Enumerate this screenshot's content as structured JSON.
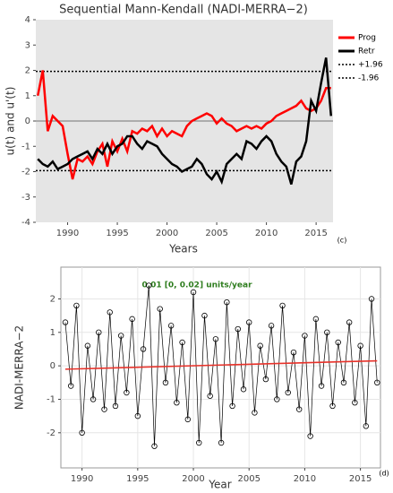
{
  "chart_data": [
    {
      "type": "line",
      "title": "Sequential Mann-Kendall (NADI-MERRA−2)",
      "xlabel": "Years",
      "ylabel": "u(t) and u'(t)",
      "tag": "(c)",
      "plot_background": "#e5e5e5",
      "grid": false,
      "legend": "right",
      "xlim": [
        1986.8,
        2016.7
      ],
      "ylim": [
        -4,
        4
      ],
      "xticks": [
        1990,
        1995,
        2000,
        2005,
        2010,
        2015
      ],
      "yticks": [
        -4,
        -3,
        -2,
        -1,
        0,
        1,
        2,
        3,
        4
      ],
      "x": [
        1987,
        1987.5,
        1988,
        1988.5,
        1989,
        1989.5,
        1990,
        1990.5,
        1991,
        1991.5,
        1992,
        1992.5,
        1993,
        1993.5,
        1994,
        1994.5,
        1995,
        1995.5,
        1996,
        1996.5,
        1997,
        1997.5,
        1998,
        1998.5,
        1999,
        1999.5,
        2000,
        2000.5,
        2001,
        2001.5,
        2002,
        2002.5,
        2003,
        2003.5,
        2004,
        2004.5,
        2005,
        2005.5,
        2006,
        2006.5,
        2007,
        2007.5,
        2008,
        2008.5,
        2009,
        2009.5,
        2010,
        2010.5,
        2011,
        2011.5,
        2012,
        2012.5,
        2013,
        2013.5,
        2014,
        2014.5,
        2015,
        2015.5,
        2016,
        2016.5
      ],
      "series": [
        {
          "name": "Prog",
          "color": "#ff0000",
          "values": [
            1.0,
            2.0,
            -0.4,
            0.2,
            0.0,
            -0.2,
            -1.3,
            -2.3,
            -1.5,
            -1.6,
            -1.4,
            -1.7,
            -1.2,
            -0.9,
            -1.8,
            -0.8,
            -1.2,
            -0.7,
            -1.2,
            -0.4,
            -0.5,
            -0.3,
            -0.4,
            -0.2,
            -0.6,
            -0.3,
            -0.6,
            -0.4,
            -0.5,
            -0.6,
            -0.2,
            0.0,
            0.1,
            0.2,
            0.3,
            0.2,
            -0.1,
            0.1,
            -0.1,
            -0.2,
            -0.4,
            -0.3,
            -0.2,
            -0.3,
            -0.2,
            -0.3,
            -0.1,
            0.0,
            0.2,
            0.3,
            0.4,
            0.5,
            0.6,
            0.8,
            0.5,
            0.4,
            0.5,
            0.8,
            1.3,
            1.3
          ]
        },
        {
          "name": "Retr",
          "color": "#000000",
          "values": [
            -1.5,
            -1.7,
            -1.8,
            -1.6,
            -1.9,
            -1.8,
            -1.7,
            -1.5,
            -1.4,
            -1.3,
            -1.2,
            -1.5,
            -1.1,
            -1.3,
            -0.9,
            -1.3,
            -1.0,
            -0.9,
            -0.6,
            -0.6,
            -0.9,
            -1.1,
            -0.8,
            -0.9,
            -1.0,
            -1.3,
            -1.5,
            -1.7,
            -1.8,
            -2.0,
            -1.9,
            -1.8,
            -1.5,
            -1.7,
            -2.1,
            -2.3,
            -2.0,
            -2.4,
            -1.7,
            -1.5,
            -1.3,
            -1.5,
            -0.8,
            -0.9,
            -1.1,
            -0.8,
            -0.6,
            -0.8,
            -1.3,
            -1.6,
            -1.8,
            -2.5,
            -1.6,
            -1.4,
            -0.8,
            0.8,
            0.4,
            1.5,
            2.5,
            0.2
          ]
        }
      ],
      "hlines": [
        {
          "value": 1.96,
          "name": "+1.96",
          "style": "dotted"
        },
        {
          "value": -1.96,
          "name": "-1.96",
          "style": "dotted"
        },
        {
          "value": 0,
          "style": "solid"
        }
      ]
    },
    {
      "type": "scatter",
      "annotation": "0.01 [0, 0.02] units/year",
      "annotation_color": "#2e7d1e",
      "xlabel": "Year",
      "ylabel": "NADI-MERRA−2",
      "tag": "(d)",
      "plot_background": "#ffffff",
      "grid": true,
      "connect": true,
      "color": "#000000",
      "xlim": [
        1988.1,
        2016.8
      ],
      "ylim": [
        -3.05,
        2.95
      ],
      "xticks": [
        1990,
        1995,
        2000,
        2005,
        2010,
        2015
      ],
      "yticks": [
        -2,
        -1,
        0,
        1,
        2
      ],
      "x": [
        1988.5,
        1989,
        1989.5,
        1990,
        1990.5,
        1991,
        1991.5,
        1992,
        1992.5,
        1993,
        1993.5,
        1994,
        1994.5,
        1995,
        1995.5,
        1996,
        1996.5,
        1997,
        1997.5,
        1998,
        1998.5,
        1999,
        1999.5,
        2000,
        2000.5,
        2001,
        2001.5,
        2002,
        2002.5,
        2003,
        2003.5,
        2004,
        2004.5,
        2005,
        2005.5,
        2006,
        2006.5,
        2007,
        2007.5,
        2008,
        2008.5,
        2009,
        2009.5,
        2010,
        2010.5,
        2011,
        2011.5,
        2012,
        2012.5,
        2013,
        2013.5,
        2014,
        2014.5,
        2015,
        2015.5,
        2016,
        2016.5
      ],
      "values": [
        1.3,
        -0.6,
        1.8,
        -2.0,
        0.6,
        -1.0,
        1.0,
        -1.3,
        1.6,
        -1.2,
        0.9,
        -0.8,
        1.4,
        -1.5,
        0.5,
        2.4,
        -2.4,
        1.7,
        -0.5,
        1.2,
        -1.1,
        0.7,
        -1.6,
        2.2,
        -2.3,
        1.5,
        -0.9,
        0.8,
        -2.3,
        1.9,
        -1.2,
        1.1,
        -0.7,
        1.3,
        -1.4,
        0.6,
        -0.4,
        1.2,
        -1.0,
        1.8,
        -0.8,
        0.4,
        -1.3,
        0.9,
        -2.1,
        1.4,
        -0.6,
        1.0,
        -1.2,
        0.7,
        -0.5,
        1.3,
        -1.1,
        0.6,
        -1.8,
        2.0,
        -0.5
      ],
      "trend": {
        "x": [
          1988.5,
          2016.5
        ],
        "values": [
          -0.1,
          0.15
        ],
        "color": "#e8322a"
      }
    }
  ]
}
